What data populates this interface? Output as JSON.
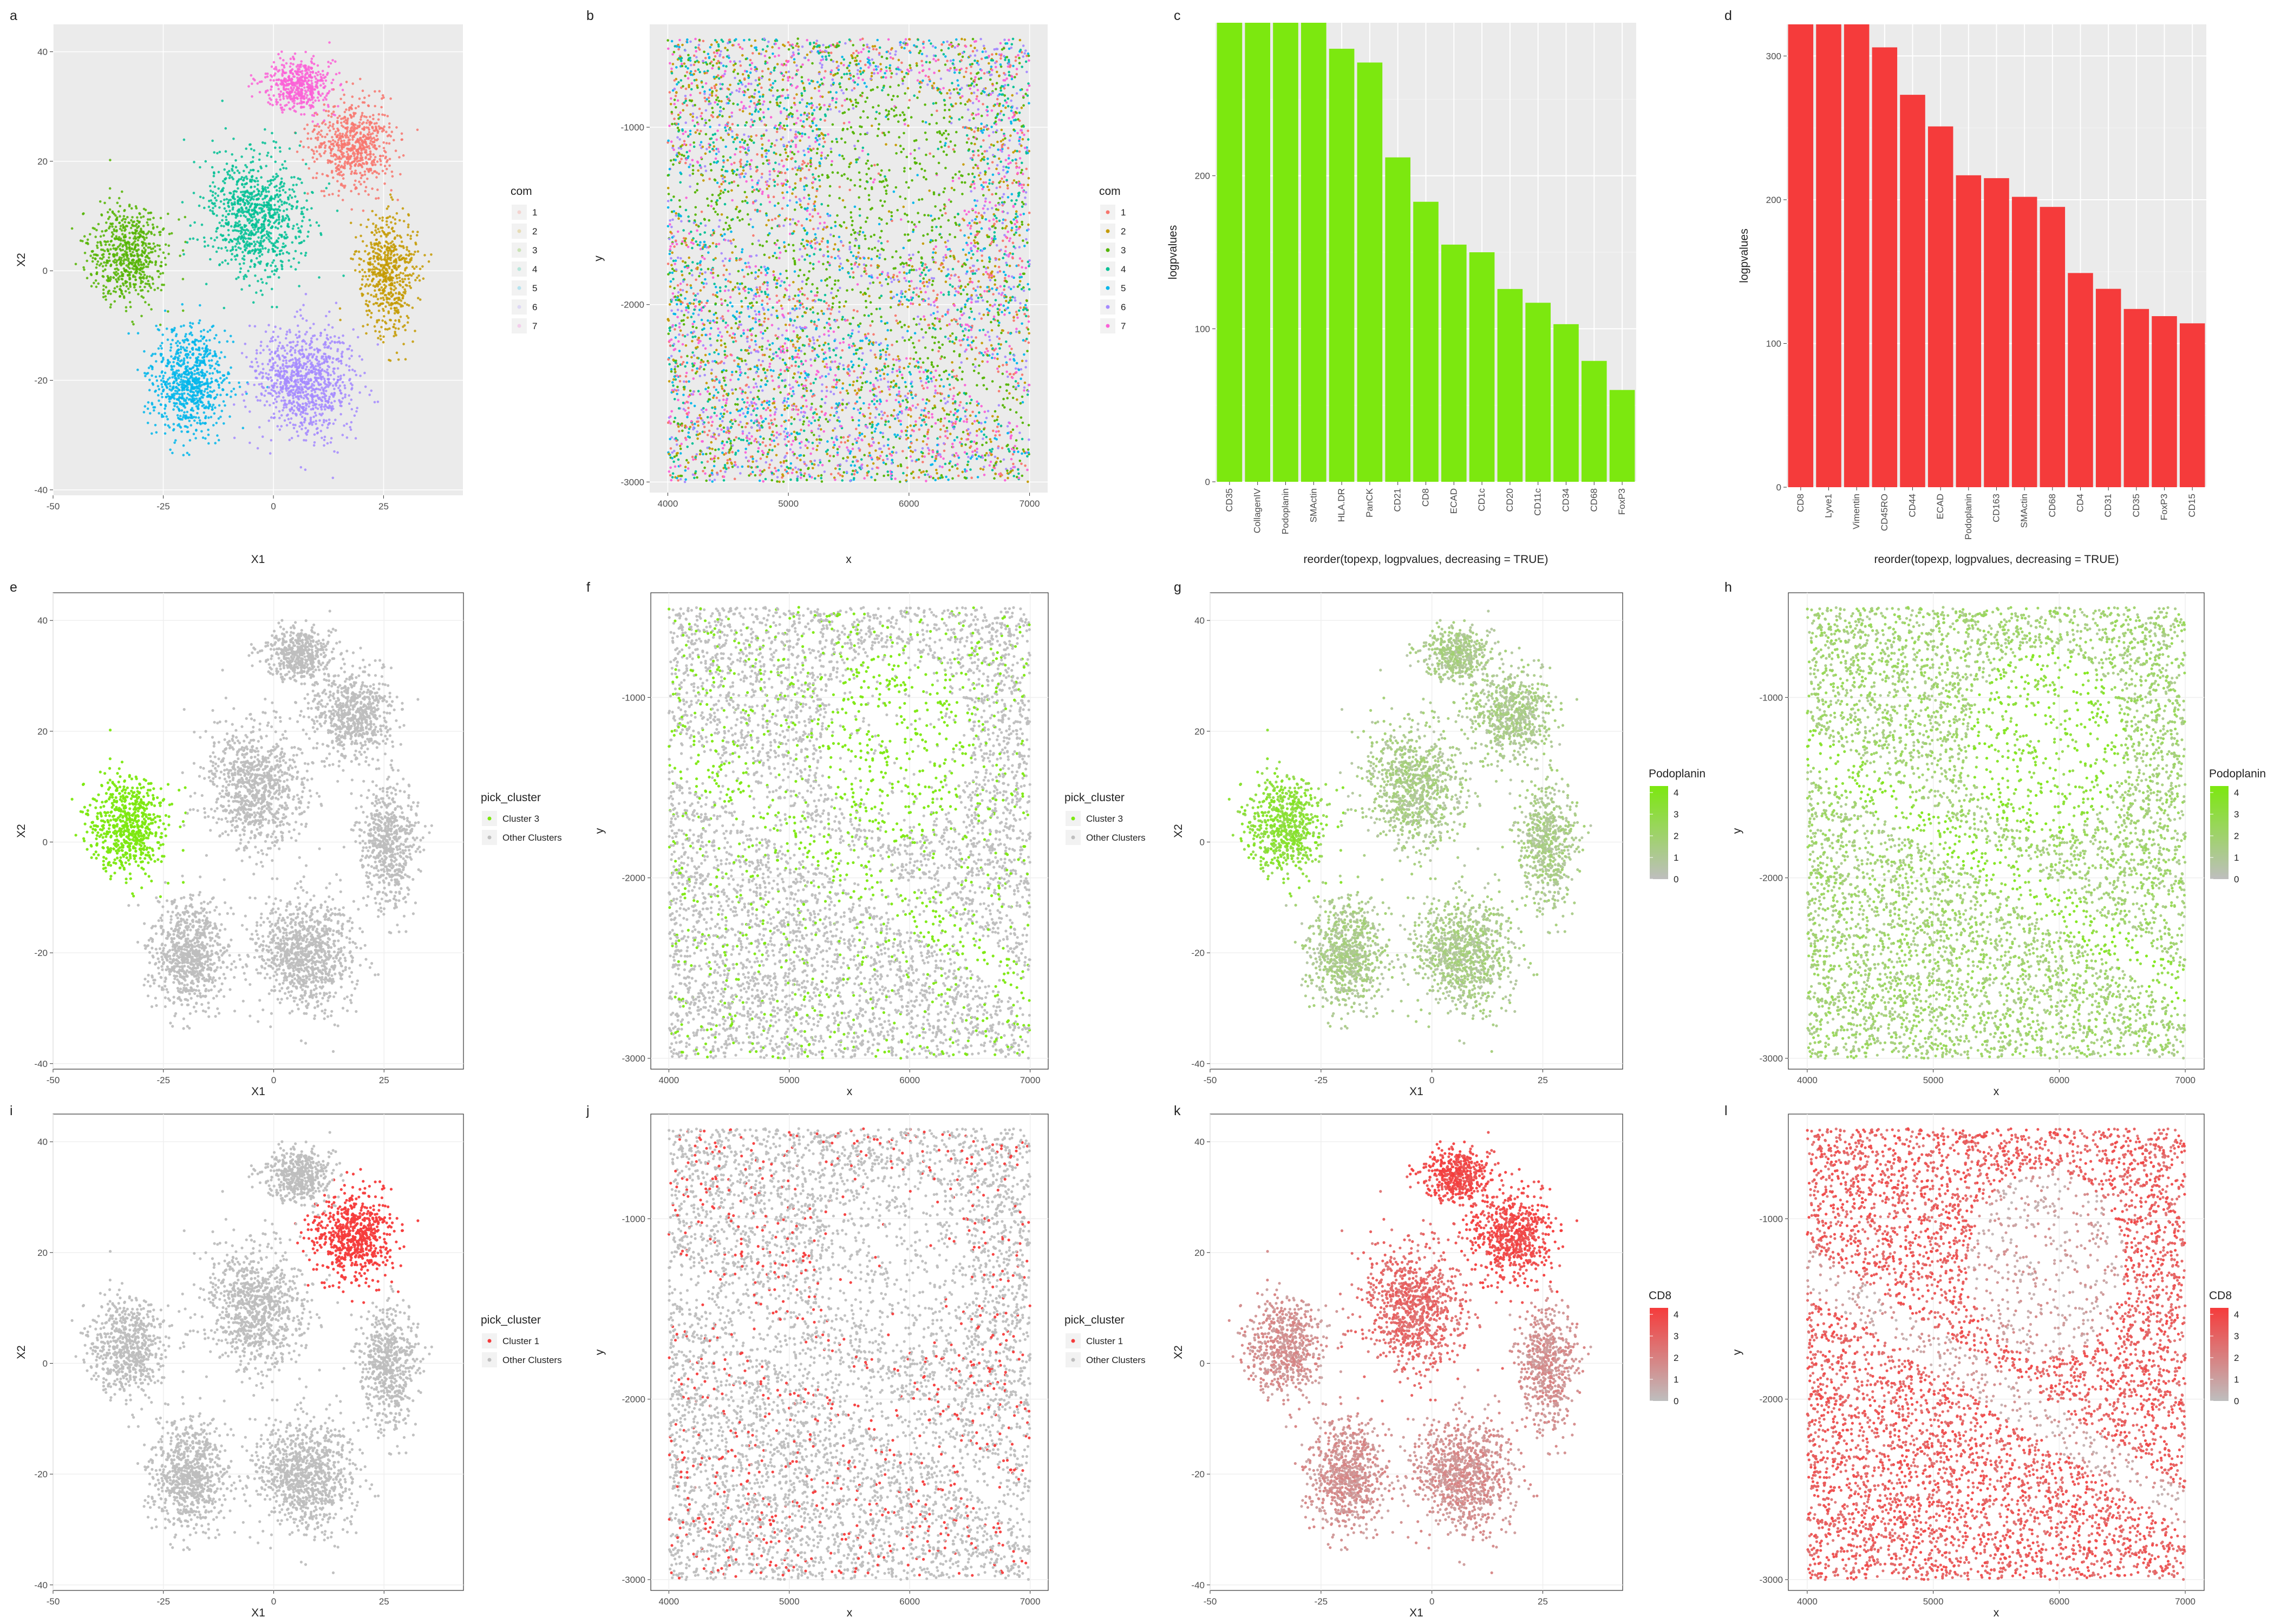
{
  "colors": {
    "com": [
      "#F8766D",
      "#C49A00",
      "#53B400",
      "#00C094",
      "#00B6EB",
      "#A58AFF",
      "#FB61D7"
    ],
    "green": "#7CE80F",
    "red": "#F53B3B",
    "grey": "#BEBEBE",
    "panel_bg": "#EBEBEB",
    "grid_major": "#FFFFFF",
    "grid_light": "#EFEFEF"
  },
  "chart_data": [
    {
      "panel": "a",
      "label": "a",
      "type": "scatter",
      "xlabel": "X1",
      "ylabel": "X2",
      "xlim": [
        -50,
        43
      ],
      "ylim": [
        -41,
        45
      ],
      "xticks": [
        "-50",
        "-25",
        "0",
        "25"
      ],
      "yticks": [
        "-40",
        "-20",
        "0",
        "20",
        "40"
      ],
      "color_by": "com",
      "grid": true,
      "legend": {
        "title": "com",
        "entries": [
          "1",
          "2",
          "3",
          "4",
          "5",
          "6",
          "7"
        ],
        "position": "right",
        "faded": true
      }
    },
    {
      "panel": "b",
      "label": "b",
      "type": "scatter",
      "xlabel": "x",
      "ylabel": "y",
      "xlim": [
        3850,
        7150
      ],
      "ylim": [
        -3060,
        -420
      ],
      "xticks": [
        "4000",
        "5000",
        "6000",
        "7000"
      ],
      "yticks": [
        "-1000",
        "-2000",
        "-3000"
      ],
      "color_by": "com",
      "grid": true,
      "legend": {
        "title": "com",
        "entries": [
          "1",
          "2",
          "3",
          "4",
          "5",
          "6",
          "7"
        ],
        "position": "right",
        "faded": false
      }
    },
    {
      "panel": "c",
      "label": "c",
      "type": "bar",
      "color": "#7CE80F",
      "xlabel": "reorder(topexp, logpvalues, decreasing = TRUE)",
      "ylabel": "logpvalues",
      "ylim": [
        0,
        300
      ],
      "yticks": [
        "0",
        "100",
        "200"
      ],
      "grid": true,
      "categories": [
        "CD35",
        "CollagenIV",
        "Podoplanin",
        "SMActin",
        "HLA.DR",
        "PanCK",
        "CD21",
        "CD8",
        "ECAD",
        "CD1c",
        "CD20",
        "CD11c",
        "CD34",
        "CD68",
        "FoxP3"
      ],
      "values": [
        320,
        320,
        320,
        320,
        283,
        274,
        212,
        183,
        155,
        150,
        126,
        117,
        103,
        79,
        60
      ]
    },
    {
      "panel": "d",
      "label": "d",
      "type": "bar",
      "color": "#F53B3B",
      "xlabel": "reorder(topexp, logpvalues, decreasing = TRUE)",
      "ylabel": "logpvalues",
      "ylim": [
        0,
        322
      ],
      "yticks": [
        "0",
        "100",
        "200",
        "300"
      ],
      "grid": true,
      "categories": [
        "CD8",
        "Lyve1",
        "Vimentin",
        "CD45RO",
        "CD44",
        "ECAD",
        "Podoplanin",
        "CD163",
        "SMActin",
        "CD68",
        "CD4",
        "CD31",
        "CD35",
        "FoxP3",
        "CD15"
      ],
      "values": [
        322,
        322,
        322,
        306,
        273,
        251,
        217,
        215,
        202,
        195,
        149,
        138,
        124,
        119,
        114
      ]
    },
    {
      "panel": "e",
      "label": "e",
      "type": "scatter",
      "xlabel": "X1",
      "ylabel": "X2",
      "xlim": [
        -50,
        43
      ],
      "ylim": [
        -41,
        45
      ],
      "xticks": [
        "-50",
        "-25",
        "0",
        "25"
      ],
      "yticks": [
        "-40",
        "-20",
        "0",
        "20",
        "40"
      ],
      "color_by": "pick_cluster",
      "highlight_cluster": 3,
      "highlight_color": "#7CE80F",
      "grid": true,
      "legend": {
        "title": "pick_cluster",
        "entries": [
          "Cluster 3",
          "Other Clusters"
        ],
        "colors": [
          "#7CE80F",
          "#BEBEBE"
        ],
        "position": "right"
      }
    },
    {
      "panel": "f",
      "label": "f",
      "type": "scatter",
      "xlabel": "x",
      "ylabel": "y",
      "xlim": [
        3850,
        7150
      ],
      "ylim": [
        -3060,
        -420
      ],
      "xticks": [
        "4000",
        "5000",
        "6000",
        "7000"
      ],
      "yticks": [
        "-1000",
        "-2000",
        "-3000"
      ],
      "color_by": "pick_cluster",
      "highlight_cluster": 3,
      "highlight_color": "#7CE80F",
      "grid": true,
      "legend": {
        "title": "pick_cluster",
        "entries": [
          "Cluster 3",
          "Other Clusters"
        ],
        "colors": [
          "#7CE80F",
          "#BEBEBE"
        ],
        "position": "right"
      }
    },
    {
      "panel": "g",
      "label": "g",
      "type": "scatter",
      "xlabel": "X1",
      "ylabel": "X2",
      "xlim": [
        -50,
        43
      ],
      "ylim": [
        -41,
        45
      ],
      "xticks": [
        "-50",
        "-25",
        "0",
        "25"
      ],
      "yticks": [
        "-40",
        "-20",
        "0",
        "20",
        "40"
      ],
      "color_by": "Podoplanin",
      "gradient": [
        "#BEBEBE",
        "#7CE80F"
      ],
      "grid": true,
      "legend": {
        "title": "Podoplanin",
        "entries": [
          "4",
          "3",
          "2",
          "1",
          "0"
        ],
        "range": [
          0,
          4.3
        ],
        "position": "right"
      }
    },
    {
      "panel": "h",
      "label": "h",
      "type": "scatter",
      "xlabel": "x",
      "ylabel": "y",
      "xlim": [
        3850,
        7150
      ],
      "ylim": [
        -3060,
        -420
      ],
      "xticks": [
        "4000",
        "5000",
        "6000",
        "7000"
      ],
      "yticks": [
        "-1000",
        "-2000",
        "-3000"
      ],
      "color_by": "Podoplanin",
      "gradient": [
        "#BEBEBE",
        "#7CE80F"
      ],
      "grid": true,
      "legend": {
        "title": "Podoplanin",
        "entries": [
          "4",
          "3",
          "2",
          "1",
          "0"
        ],
        "range": [
          0,
          4.3
        ],
        "position": "right"
      }
    },
    {
      "panel": "i",
      "label": "i",
      "type": "scatter",
      "xlabel": "X1",
      "ylabel": "X2",
      "xlim": [
        -50,
        43
      ],
      "ylim": [
        -41,
        45
      ],
      "xticks": [
        "-50",
        "-25",
        "0",
        "25"
      ],
      "yticks": [
        "-40",
        "-20",
        "0",
        "20",
        "40"
      ],
      "color_by": "pick_cluster",
      "highlight_cluster": 1,
      "highlight_color": "#F53B3B",
      "grid": true,
      "legend": {
        "title": "pick_cluster",
        "entries": [
          "Cluster 1",
          "Other Clusters"
        ],
        "colors": [
          "#F53B3B",
          "#BEBEBE"
        ],
        "position": "right"
      }
    },
    {
      "panel": "j",
      "label": "j",
      "type": "scatter",
      "xlabel": "x",
      "ylabel": "y",
      "xlim": [
        3850,
        7150
      ],
      "ylim": [
        -3060,
        -420
      ],
      "xticks": [
        "4000",
        "5000",
        "6000",
        "7000"
      ],
      "yticks": [
        "-1000",
        "-2000",
        "-3000"
      ],
      "color_by": "pick_cluster",
      "highlight_cluster": 1,
      "highlight_color": "#F53B3B",
      "grid": true,
      "legend": {
        "title": "pick_cluster",
        "entries": [
          "Cluster 1",
          "Other Clusters"
        ],
        "colors": [
          "#F53B3B",
          "#BEBEBE"
        ],
        "position": "right"
      }
    },
    {
      "panel": "k",
      "label": "k",
      "type": "scatter",
      "xlabel": "X1",
      "ylabel": "X2",
      "xlim": [
        -50,
        43
      ],
      "ylim": [
        -41,
        45
      ],
      "xticks": [
        "-50",
        "-25",
        "0",
        "25"
      ],
      "yticks": [
        "-40",
        "-20",
        "0",
        "20",
        "40"
      ],
      "color_by": "CD8",
      "gradient": [
        "#BEBEBE",
        "#F53B3B"
      ],
      "grid": true,
      "legend": {
        "title": "CD8",
        "entries": [
          "4",
          "3",
          "2",
          "1",
          "0"
        ],
        "range": [
          0,
          4.3
        ],
        "position": "right"
      }
    },
    {
      "panel": "l",
      "label": "l",
      "type": "scatter",
      "xlabel": "x",
      "ylabel": "y",
      "xlim": [
        3850,
        7150
      ],
      "ylim": [
        -3060,
        -420
      ],
      "xticks": [
        "4000",
        "5000",
        "6000",
        "7000"
      ],
      "yticks": [
        "-1000",
        "-2000",
        "-3000"
      ],
      "color_by": "CD8",
      "gradient": [
        "#BEBEBE",
        "#F53B3B"
      ],
      "grid": true,
      "legend": {
        "title": "CD8",
        "entries": [
          "4",
          "3",
          "2",
          "1",
          "0"
        ],
        "range": [
          0,
          4.3
        ],
        "position": "right"
      }
    }
  ]
}
